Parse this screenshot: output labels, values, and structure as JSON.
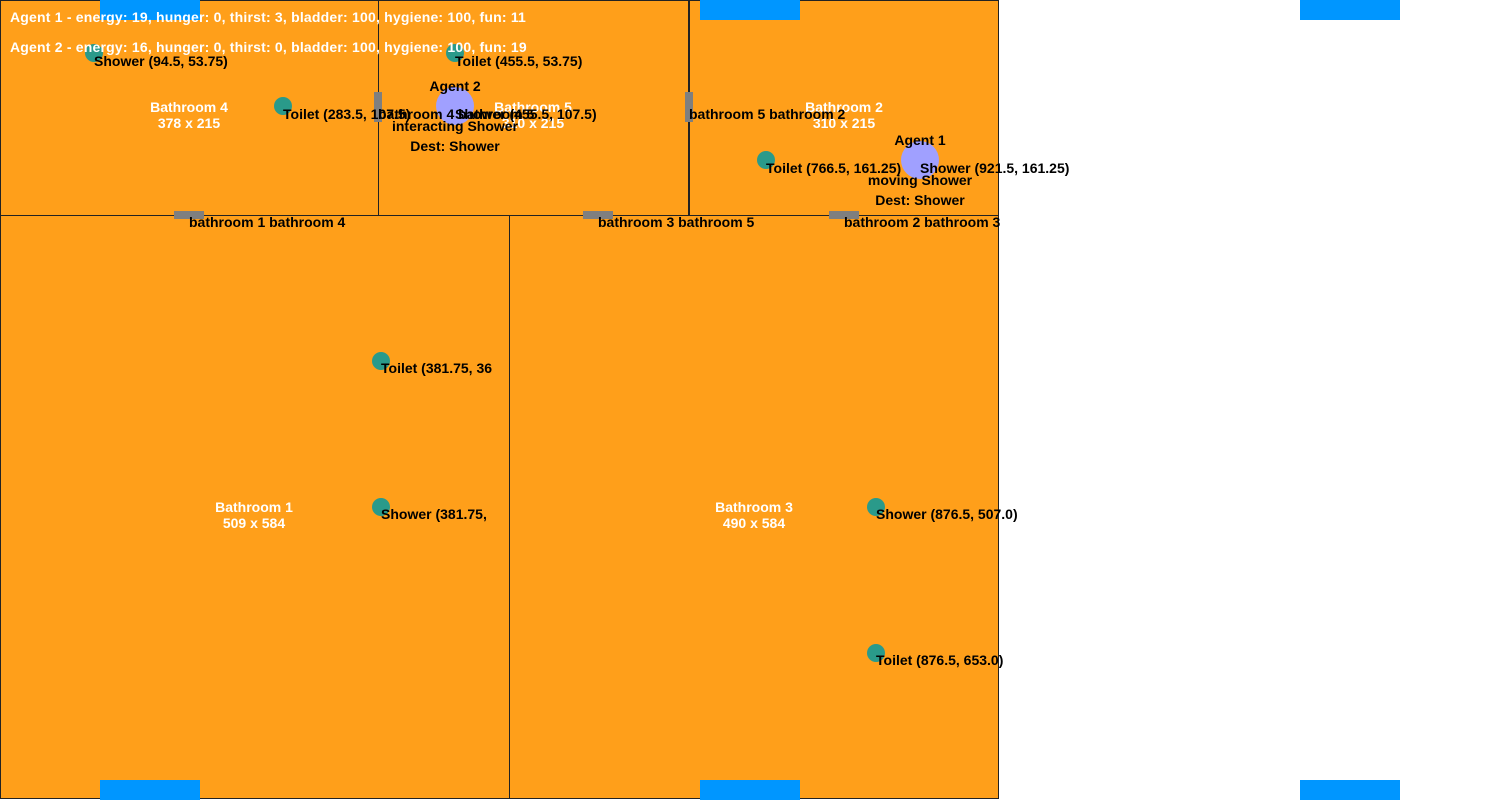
{
  "colors": {
    "room_fill": "#ff9f1a",
    "room_border": "#222222",
    "window": "#0096ff",
    "door": "#7f7f7f",
    "object": "#2a9a8a",
    "agent": "#a0a0ff",
    "status_text": "#ffffff"
  },
  "rooms": {
    "bathroom1": {
      "name": "Bathroom 1",
      "size": "509 x 584"
    },
    "bathroom2": {
      "name": "Bathroom 2",
      "size": "310 x 215"
    },
    "bathroom3": {
      "name": "Bathroom 3",
      "size": "490 x 584"
    },
    "bathroom4": {
      "name": "Bathroom 4",
      "size": "378 x 215"
    },
    "bathroom5": {
      "name": "Bathroom 5",
      "size": "310 x 215"
    }
  },
  "doors": {
    "d14": "bathroom 1 bathroom 4",
    "d35": "bathroom 3 bathroom 5",
    "d23": "bathroom 2 bathroom 3",
    "d52": "bathroom 5 bathroom 2",
    "d45": "bathroom 4 bathroom 5"
  },
  "objects": {
    "shower4": "Shower (94.5, 53.75)",
    "toilet4": "Toilet (283.5, 107.5)",
    "toilet5": "Toilet (455.5, 53.75)",
    "shower5": "Shower (455.5, 107.5)",
    "toilet2": "Toilet (766.5, 161.25)",
    "shower2": "Shower (921.5, 161.25)",
    "toilet1": "Toilet (381.75, 36",
    "shower1": "Shower (381.75,",
    "shower3": "Shower (876.5, 507.0)",
    "toilet3": "Toilet (876.5, 653.0)"
  },
  "agents": {
    "agent1": {
      "name": "Agent 1",
      "state": "moving Shower",
      "dest": "Dest: Shower"
    },
    "agent2": {
      "name": "Agent 2",
      "state": "interacting Shower",
      "dest": "Dest: Shower"
    }
  },
  "status": {
    "agent1": "Agent 1 - energy: 19, hunger: 0, thirst: 3, bladder: 100, hygiene: 100, fun: 11",
    "agent2": "Agent 2 - energy: 16, hunger: 0, thirst: 0, bladder: 100, hygiene: 100, fun: 19"
  }
}
